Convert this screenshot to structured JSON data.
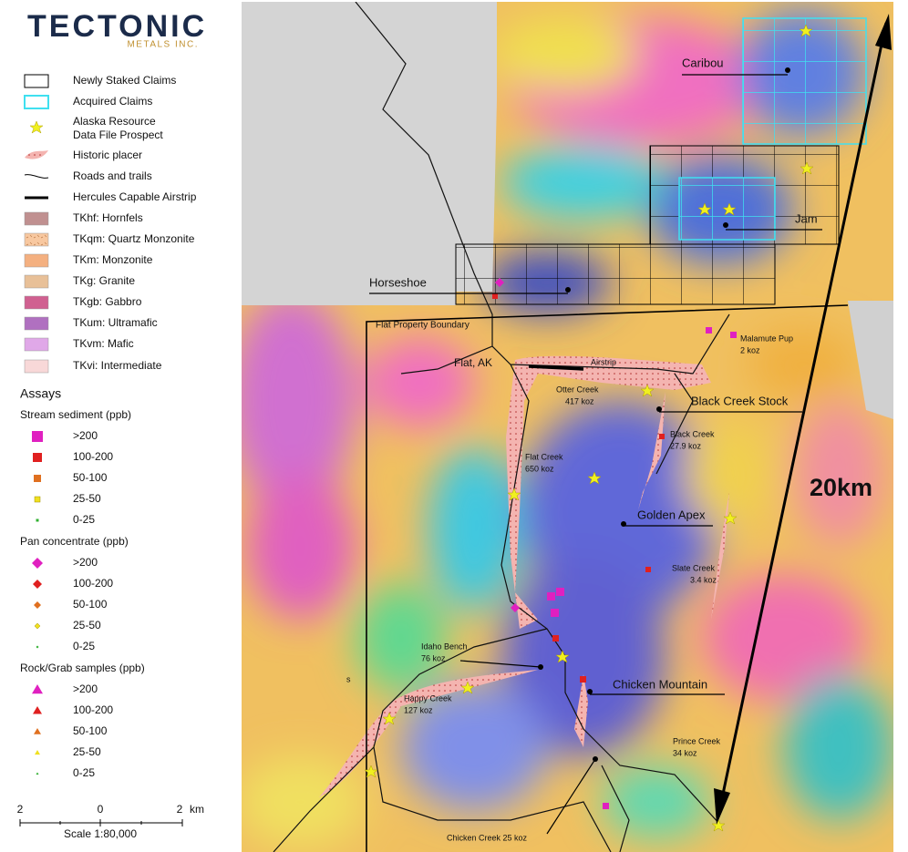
{
  "logo": {
    "name": "TECTONIC",
    "sub": "METALS INC."
  },
  "legend": {
    "items": [
      "Newly Staked Claims",
      "Acquired Claims",
      [
        "Alaska Resource",
        "Data File Prospect"
      ],
      "Historic placer",
      "Roads and trails",
      "Hercules Capable Airstrip",
      "TKhf: Hornfels",
      "TKqm: Quartz Monzonite",
      "TKm: Monzonite",
      "TKg: Granite",
      "TKgb: Gabbro",
      "TKum: Ultramafic",
      "TKvm: Mafic",
      "TKvi: Intermediate"
    ]
  },
  "assays": {
    "title": "Assays",
    "groups": [
      {
        "title": "Stream sediment (ppb)",
        "items": [
          ">200",
          "100-200",
          "50-100",
          "25-50",
          "0-25"
        ]
      },
      {
        "title": "Pan concentrate (ppb)",
        "items": [
          ">200",
          "100-200",
          "50-100",
          "25-50",
          "0-25"
        ]
      },
      {
        "title": "Rock/Grab samples (ppb)",
        "items": [
          ">200",
          "100-200",
          "50-100",
          "25-50",
          "0-25"
        ]
      }
    ]
  },
  "scale": {
    "ticks": [
      "2",
      "0",
      "2"
    ],
    "unit": "km",
    "label": "Scale 1:80,000"
  },
  "map": {
    "claims": [
      "Caribou",
      "Jam",
      "Horseshoe",
      "Black Creek Stock",
      "Golden Apex",
      "Chicken Mountain"
    ],
    "places": [
      "Flat Property Boundary",
      "Flat, AK",
      "Airstrip",
      "s",
      "Chicken Creek 25 koz"
    ],
    "deposits": [
      {
        "name": "Malamute Pup",
        "size": "2 koz"
      },
      {
        "name": "Otter Creek",
        "size": "417 koz"
      },
      {
        "name": "Black Creek",
        "size": "27.9 koz"
      },
      {
        "name": "Flat Creek",
        "size": "650 koz"
      },
      {
        "name": "Slate Creek",
        "size": "3.4 koz"
      },
      {
        "name": "Idaho Bench",
        "size": "76 koz"
      },
      {
        "name": "Happy Creek",
        "size": "127 koz"
      },
      {
        "name": "Prince Creek",
        "size": "34 koz"
      }
    ],
    "distance": "20km"
  }
}
